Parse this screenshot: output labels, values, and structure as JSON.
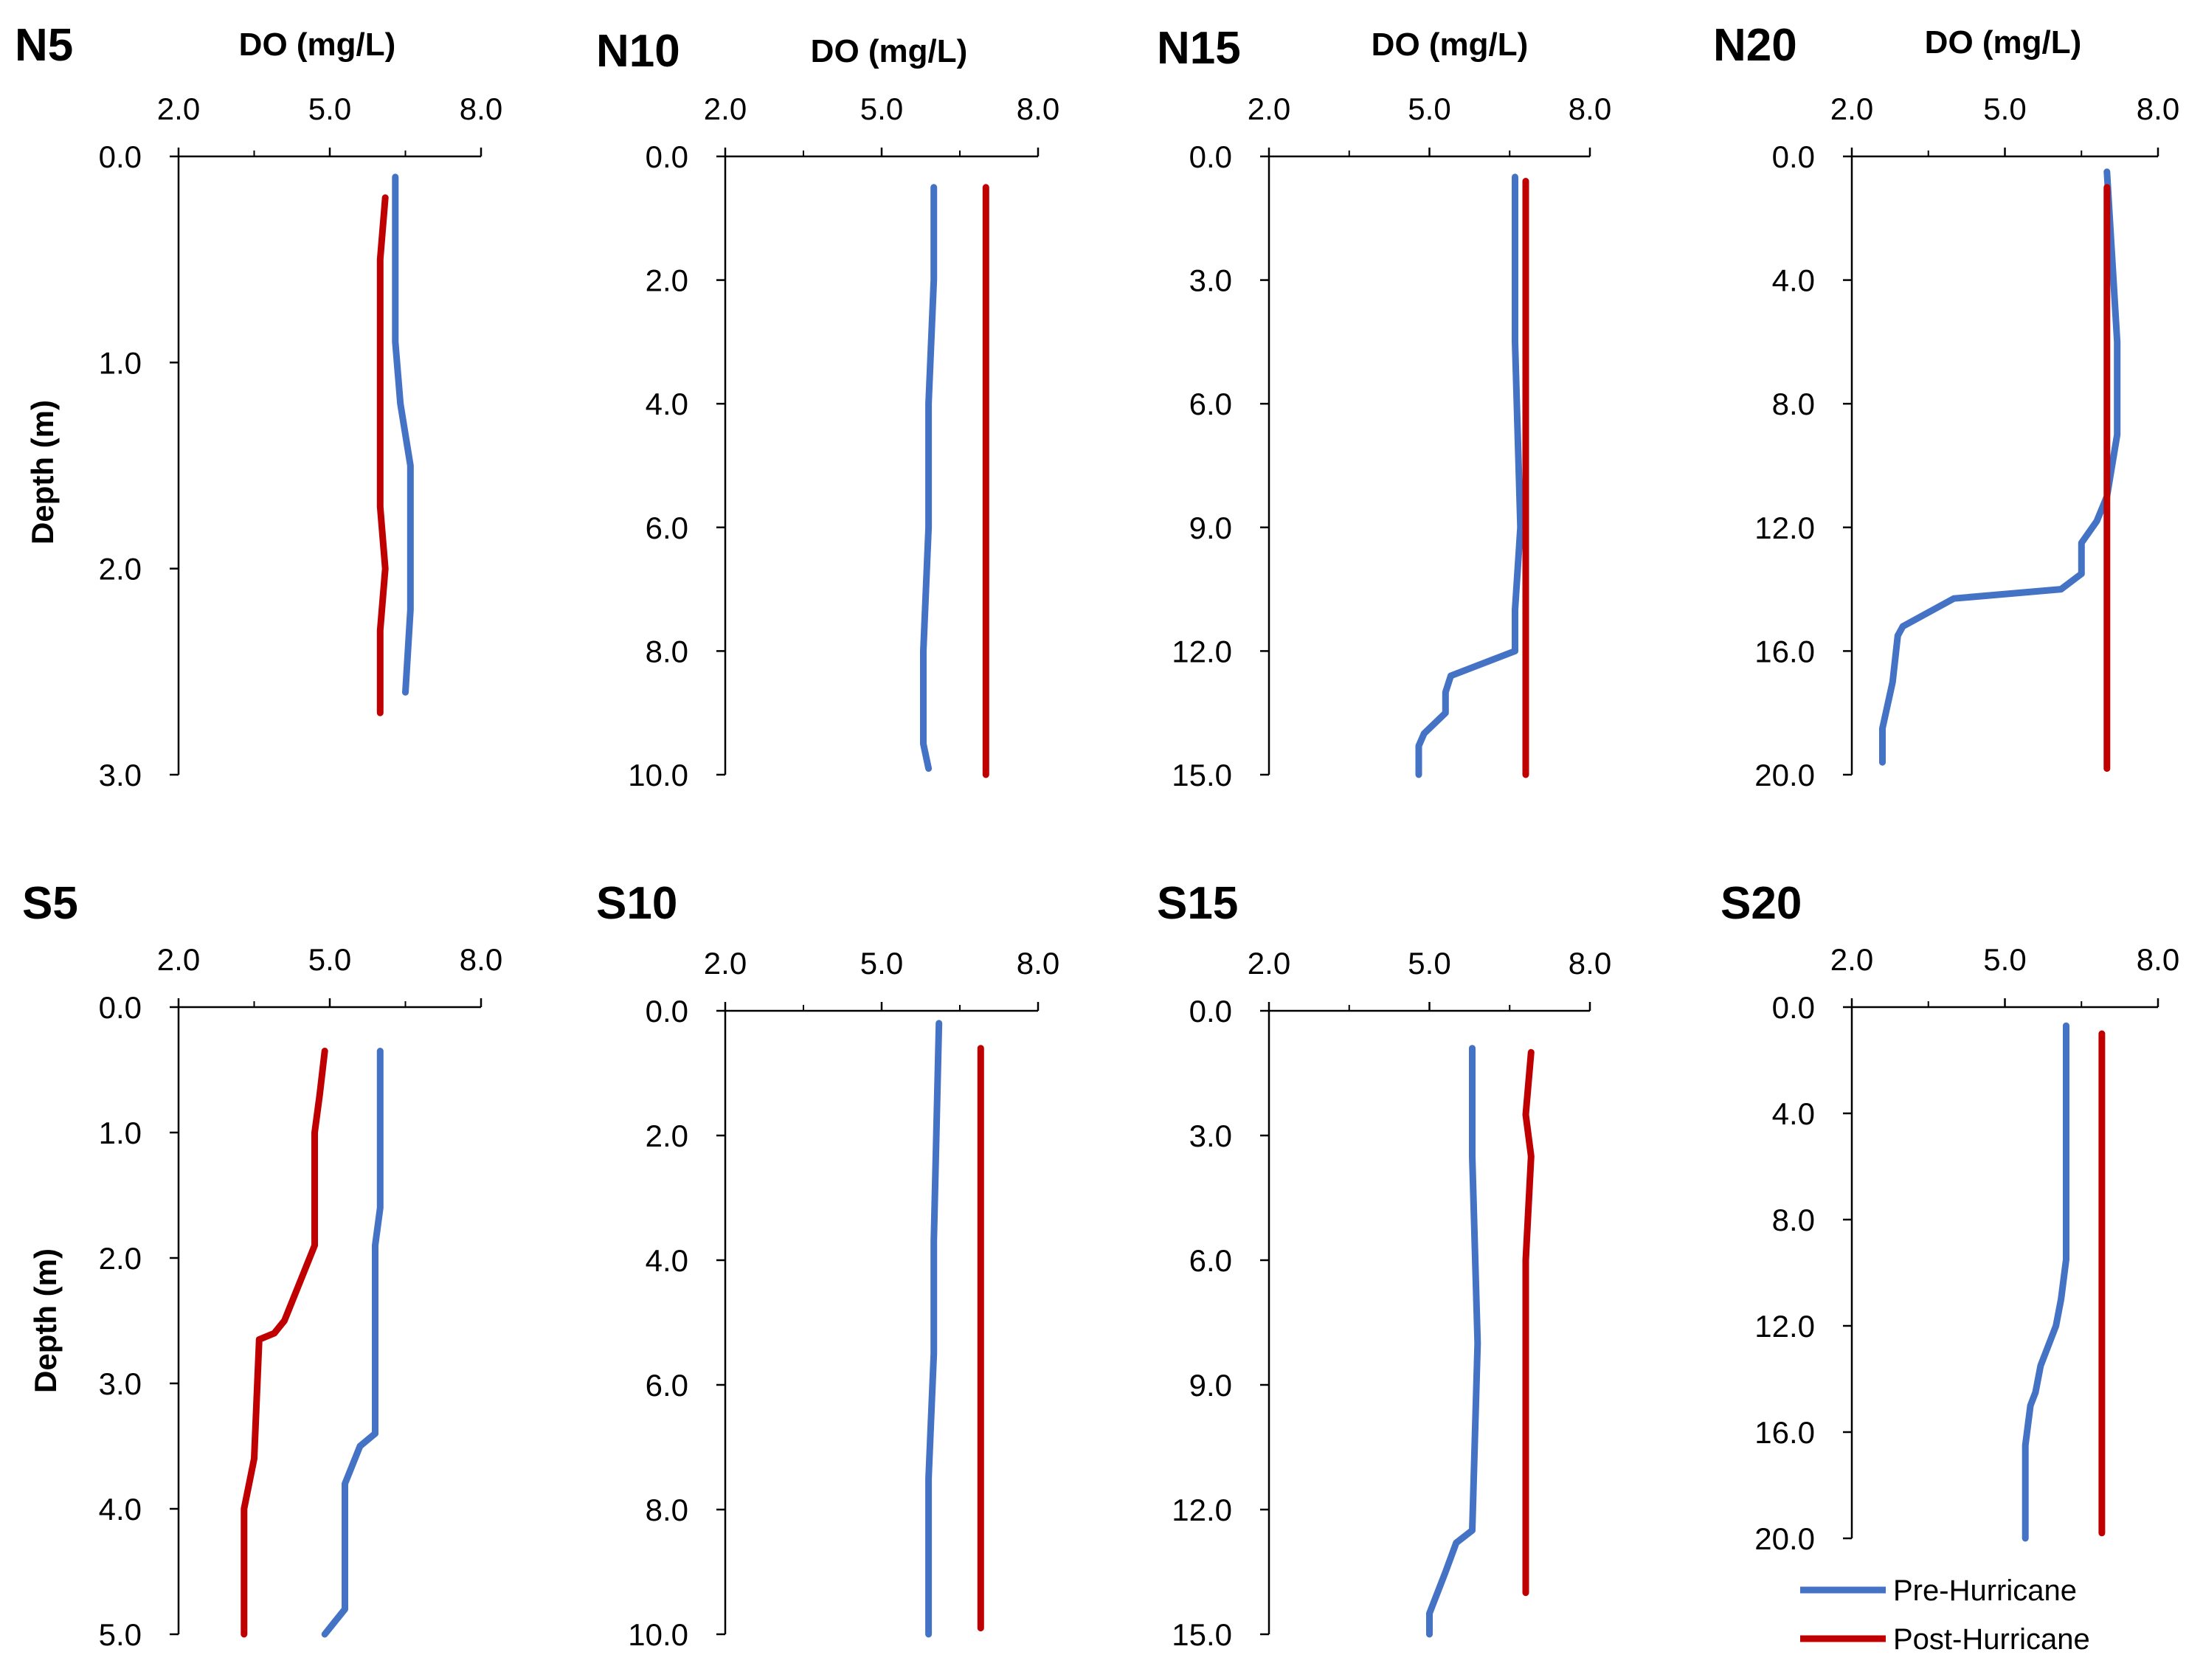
{
  "colors": {
    "pre": "#4472C4",
    "post": "#C00000",
    "axis": "#000000"
  },
  "legend": {
    "pre_label": "Pre-Hurricane",
    "post_label": "Post-Hurricane"
  },
  "chart_data": [
    {
      "type": "line",
      "title": "N5",
      "xlabel": "DO (mg/L)",
      "ylabel": "Depth (m)",
      "xlim": [
        2.0,
        8.0
      ],
      "ylim": [
        0,
        3.0
      ],
      "y_inverted": true,
      "xticks": [
        "2.0",
        "5.0",
        "8.0"
      ],
      "yticks": [
        "0.0",
        "1.0",
        "2.0",
        "3.0"
      ],
      "series": [
        {
          "name": "Pre-Hurricane",
          "depth": [
            0.1,
            0.5,
            0.9,
            1.2,
            1.5,
            1.8,
            2.2,
            2.6
          ],
          "do": [
            6.3,
            6.3,
            6.3,
            6.4,
            6.6,
            6.6,
            6.6,
            6.5
          ]
        },
        {
          "name": "Post-Hurricane",
          "depth": [
            0.2,
            0.5,
            1.0,
            1.5,
            1.7,
            2.0,
            2.3,
            2.7
          ],
          "do": [
            6.1,
            6.0,
            6.0,
            6.0,
            6.0,
            6.1,
            6.0,
            6.0
          ]
        }
      ]
    },
    {
      "type": "line",
      "title": "N10",
      "xlabel": "DO (mg/L)",
      "ylabel": "",
      "xlim": [
        2.0,
        8.0
      ],
      "ylim": [
        0,
        10.0
      ],
      "y_inverted": true,
      "xticks": [
        "2.0",
        "5.0",
        "8.0"
      ],
      "yticks": [
        "0.0",
        "2.0",
        "4.0",
        "6.0",
        "8.0",
        "10.0"
      ],
      "series": [
        {
          "name": "Pre-Hurricane",
          "depth": [
            0.5,
            2.0,
            4.0,
            6.0,
            8.0,
            9.5,
            9.9
          ],
          "do": [
            6.0,
            6.0,
            5.9,
            5.9,
            5.8,
            5.8,
            5.9
          ]
        },
        {
          "name": "Post-Hurricane",
          "depth": [
            0.5,
            1.0,
            2.0,
            4.0,
            6.0,
            8.0,
            10.0
          ],
          "do": [
            7.0,
            7.0,
            7.0,
            7.0,
            7.0,
            7.0,
            7.0
          ]
        }
      ]
    },
    {
      "type": "line",
      "title": "N15",
      "xlabel": "DO (mg/L)",
      "ylabel": "",
      "xlim": [
        2.0,
        8.0
      ],
      "ylim": [
        0,
        15.0
      ],
      "y_inverted": true,
      "xticks": [
        "2.0",
        "5.0",
        "8.0"
      ],
      "yticks": [
        "0.0",
        "3.0",
        "6.0",
        "9.0",
        "12.0",
        "15.0"
      ],
      "series": [
        {
          "name": "Pre-Hurricane",
          "depth": [
            0.5,
            4.5,
            9.0,
            11.0,
            12.0,
            12.6,
            13.0,
            13.5,
            14.0,
            14.3,
            15.0
          ],
          "do": [
            6.6,
            6.6,
            6.7,
            6.6,
            6.6,
            5.4,
            5.3,
            5.3,
            4.9,
            4.8,
            4.8
          ]
        },
        {
          "name": "Post-Hurricane",
          "depth": [
            0.6,
            3.0,
            6.0,
            9.0,
            12.0,
            15.0
          ],
          "do": [
            6.8,
            6.8,
            6.8,
            6.8,
            6.8,
            6.8
          ]
        }
      ]
    },
    {
      "type": "line",
      "title": "N20",
      "xlabel": "DO (mg/L)",
      "ylabel": "",
      "xlim": [
        2.0,
        8.0
      ],
      "ylim": [
        0,
        20.0
      ],
      "y_inverted": true,
      "xticks": [
        "2.0",
        "5.0",
        "8.0"
      ],
      "yticks": [
        "0.0",
        "4.0",
        "8.0",
        "12.0",
        "16.0",
        "20.0"
      ],
      "series": [
        {
          "name": "Pre-Hurricane",
          "depth": [
            0.5,
            6.0,
            9.0,
            11.0,
            11.8,
            12.5,
            13.5,
            14.0,
            14.3,
            15.2,
            15.5,
            17.0,
            18.5,
            19.6
          ],
          "do": [
            7.0,
            7.2,
            7.2,
            7.0,
            6.8,
            6.5,
            6.5,
            6.1,
            4.0,
            3.0,
            2.9,
            2.8,
            2.6,
            2.6
          ]
        },
        {
          "name": "Post-Hurricane",
          "depth": [
            1.0,
            5.0,
            10.0,
            15.0,
            19.8
          ],
          "do": [
            7.0,
            7.0,
            7.0,
            7.0,
            7.0
          ]
        }
      ]
    },
    {
      "type": "line",
      "title": "S5",
      "xlabel": "",
      "ylabel": "Depth (m)",
      "xlim": [
        2.0,
        8.0
      ],
      "ylim": [
        0,
        5.0
      ],
      "y_inverted": true,
      "xticks": [
        "2.0",
        "5.0",
        "8.0"
      ],
      "yticks": [
        "0.0",
        "1.0",
        "2.0",
        "3.0",
        "4.0",
        "5.0"
      ],
      "series": [
        {
          "name": "Pre-Hurricane",
          "depth": [
            0.35,
            1.6,
            1.9,
            3.4,
            3.5,
            3.8,
            4.8,
            4.9,
            5.0
          ],
          "do": [
            6.0,
            6.0,
            5.9,
            5.9,
            5.6,
            5.3,
            5.3,
            5.1,
            4.9
          ]
        },
        {
          "name": "Post-Hurricane",
          "depth": [
            0.35,
            0.7,
            1.0,
            1.9,
            2.2,
            2.5,
            2.6,
            2.65,
            3.6,
            4.0,
            5.0
          ],
          "do": [
            4.9,
            4.8,
            4.7,
            4.7,
            4.4,
            4.1,
            3.9,
            3.6,
            3.5,
            3.3,
            3.3
          ]
        }
      ]
    },
    {
      "type": "line",
      "title": "S10",
      "xlabel": "",
      "ylabel": "",
      "xlim": [
        2.0,
        8.0
      ],
      "ylim": [
        0,
        10.0
      ],
      "y_inverted": true,
      "xticks": [
        "2.0",
        "5.0",
        "8.0"
      ],
      "yticks": [
        "0.0",
        "2.0",
        "4.0",
        "6.0",
        "8.0",
        "10.0"
      ],
      "series": [
        {
          "name": "Pre-Hurricane",
          "depth": [
            0.2,
            3.7,
            5.5,
            7.5,
            10.0
          ],
          "do": [
            6.1,
            6.0,
            6.0,
            5.9,
            5.9
          ]
        },
        {
          "name": "Post-Hurricane",
          "depth": [
            0.6,
            2.0,
            5.0,
            8.0,
            9.9
          ],
          "do": [
            6.9,
            6.9,
            6.9,
            6.9,
            6.9
          ]
        }
      ]
    },
    {
      "type": "line",
      "title": "S15",
      "xlabel": "",
      "ylabel": "",
      "xlim": [
        2.0,
        8.0
      ],
      "ylim": [
        0,
        15.0
      ],
      "y_inverted": true,
      "xticks": [
        "2.0",
        "5.0",
        "8.0"
      ],
      "yticks": [
        "0.0",
        "3.0",
        "6.0",
        "9.0",
        "12.0",
        "15.0"
      ],
      "series": [
        {
          "name": "Pre-Hurricane",
          "depth": [
            0.9,
            3.5,
            8.0,
            12.5,
            12.8,
            13.5,
            14.5,
            15.0
          ],
          "do": [
            5.8,
            5.8,
            5.9,
            5.8,
            5.5,
            5.3,
            5.0,
            5.0
          ]
        },
        {
          "name": "Post-Hurricane",
          "depth": [
            1.0,
            2.5,
            3.5,
            6.0,
            9.0,
            14.0
          ],
          "do": [
            6.9,
            6.8,
            6.9,
            6.8,
            6.8,
            6.8
          ]
        }
      ]
    },
    {
      "type": "line",
      "title": "S20",
      "xlabel": "",
      "ylabel": "",
      "xlim": [
        2.0,
        8.0
      ],
      "ylim": [
        0,
        20.0
      ],
      "y_inverted": true,
      "xticks": [
        "2.0",
        "5.0",
        "8.0"
      ],
      "yticks": [
        "0.0",
        "4.0",
        "8.0",
        "12.0",
        "16.0",
        "20.0"
      ],
      "series": [
        {
          "name": "Pre-Hurricane",
          "depth": [
            0.7,
            4.0,
            9.5,
            11.0,
            12.0,
            13.5,
            14.5,
            15.0,
            16.5,
            20.0
          ],
          "do": [
            6.2,
            6.2,
            6.2,
            6.1,
            6.0,
            5.7,
            5.6,
            5.5,
            5.4,
            5.4
          ]
        },
        {
          "name": "Post-Hurricane",
          "depth": [
            1.0,
            5.0,
            10.0,
            15.0,
            19.8
          ],
          "do": [
            6.9,
            6.9,
            6.9,
            6.9,
            6.9
          ]
        }
      ]
    }
  ]
}
